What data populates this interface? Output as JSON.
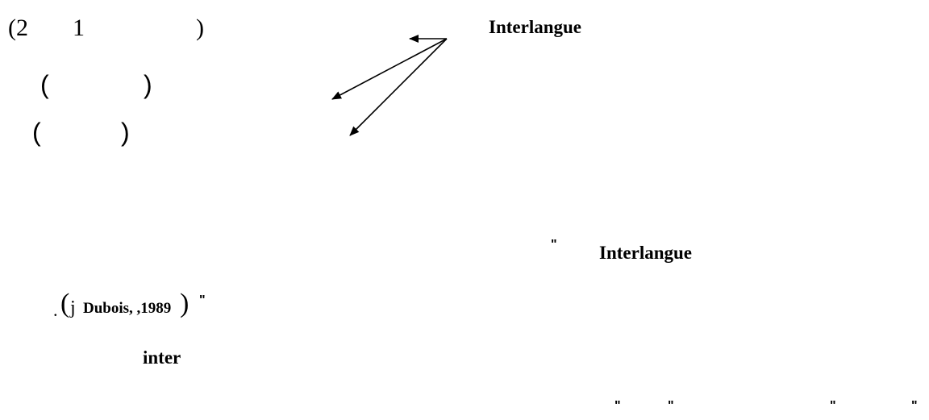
{
  "line1": {
    "open": "(2",
    "num": "1",
    "close": ")"
  },
  "line2": {
    "open": "(",
    "close": ")"
  },
  "line3": {
    "open": "(",
    "close": ")"
  },
  "heading": "Interlangue",
  "quote_block": {
    "quote_open": "\"",
    "term": "Interlangue",
    "citation_dot": ".",
    "citation_paren_open": "(",
    "citation_j": "j",
    "citation_text": "Dubois, ,1989",
    "citation_paren_close": ")",
    "quote_close": "\""
  },
  "prefix_term": "inter",
  "quote_marks": [
    "\"",
    "\"",
    "\"",
    "\""
  ]
}
